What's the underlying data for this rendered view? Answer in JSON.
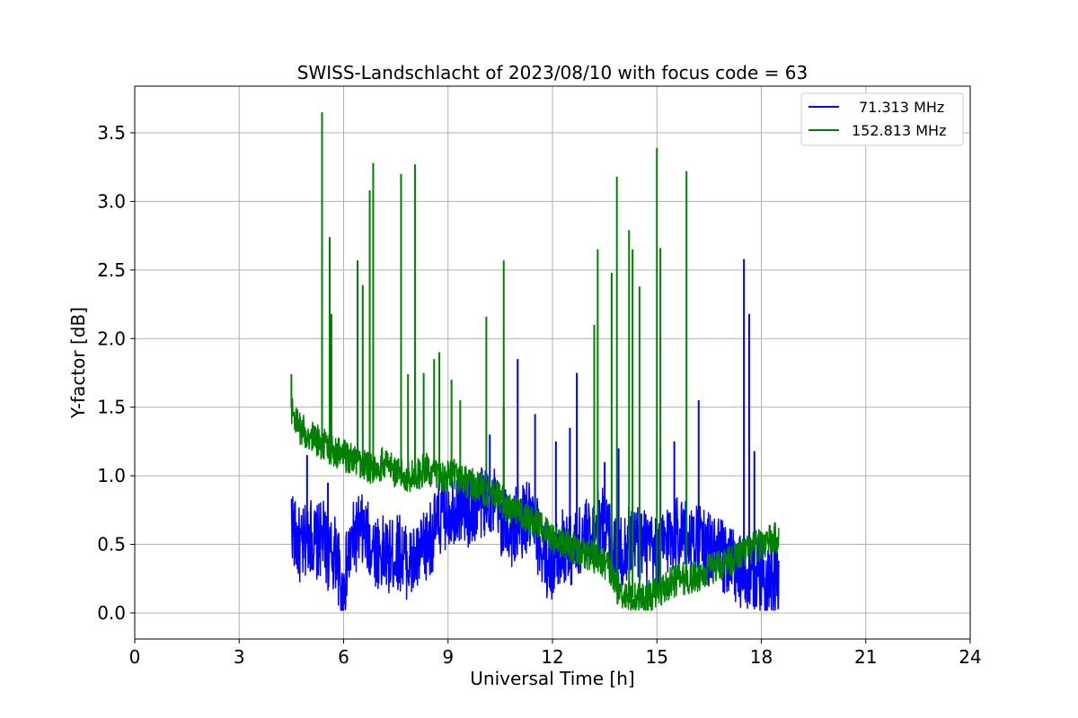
{
  "chart_data": {
    "type": "line",
    "title": "SWISS-Landschlacht of 2023/08/10 with focus code = 63",
    "xlabel": "Universal Time [h]",
    "ylabel": "Y-factor [dB]",
    "xlim": [
      0,
      24
    ],
    "ylim": [
      -0.19,
      3.84
    ],
    "xticks": [
      0,
      3,
      6,
      9,
      12,
      15,
      18,
      21,
      24
    ],
    "yticks": [
      0.0,
      0.5,
      1.0,
      1.5,
      2.0,
      2.5,
      3.0,
      3.5
    ],
    "grid": true,
    "legend_position": "top-right",
    "series": [
      {
        "name": "71.313 MHz",
        "color": "#0000ff",
        "x": [
          4.5,
          4.6,
          4.8,
          5.0,
          5.2,
          5.4,
          5.6,
          5.8,
          5.95,
          6.1,
          6.3,
          6.5,
          6.8,
          7.0,
          7.3,
          7.6,
          7.9,
          8.2,
          8.5,
          8.8,
          9.0,
          9.3,
          9.6,
          9.9,
          10.2,
          10.5,
          10.8,
          11.0,
          11.3,
          11.5,
          11.8,
          12.0,
          12.3,
          12.6,
          12.9,
          13.2,
          13.5,
          13.8,
          14.0,
          14.3,
          14.6,
          15.0,
          15.3,
          15.6,
          16.0,
          16.3,
          16.6,
          17.0,
          17.3,
          17.6,
          17.9,
          18.2,
          18.5
        ],
        "y": [
          0.7,
          0.55,
          0.45,
          0.6,
          0.5,
          0.55,
          0.4,
          0.45,
          0.1,
          0.35,
          0.55,
          0.6,
          0.5,
          0.45,
          0.4,
          0.45,
          0.35,
          0.4,
          0.55,
          0.7,
          0.75,
          0.8,
          0.75,
          0.8,
          0.85,
          0.7,
          0.6,
          0.65,
          0.7,
          0.6,
          0.4,
          0.35,
          0.5,
          0.45,
          0.55,
          0.6,
          0.65,
          0.5,
          0.45,
          0.55,
          0.5,
          0.4,
          0.55,
          0.6,
          0.55,
          0.5,
          0.45,
          0.4,
          0.3,
          0.25,
          0.3,
          0.25,
          0.25
        ],
        "spikes": [
          [
            4.95,
            1.15
          ],
          [
            5.55,
            0.95
          ],
          [
            9.3,
            1.05
          ],
          [
            10.2,
            1.3
          ],
          [
            10.6,
            1.5
          ],
          [
            11.0,
            1.85
          ],
          [
            11.5,
            1.45
          ],
          [
            12.1,
            1.25
          ],
          [
            12.5,
            1.35
          ],
          [
            12.7,
            1.75
          ],
          [
            13.5,
            1.1
          ],
          [
            13.9,
            1.2
          ],
          [
            15.1,
            1.2
          ],
          [
            15.5,
            1.25
          ],
          [
            16.2,
            1.55
          ],
          [
            17.5,
            2.58
          ],
          [
            17.65,
            2.18
          ],
          [
            17.8,
            1.18
          ]
        ]
      },
      {
        "name": "152.813 MHz",
        "color": "#008000",
        "x": [
          4.5,
          4.7,
          5.0,
          5.3,
          5.6,
          6.0,
          6.4,
          6.8,
          7.2,
          7.6,
          8.0,
          8.4,
          8.8,
          9.2,
          9.6,
          10.0,
          10.4,
          10.8,
          11.2,
          11.6,
          12.0,
          12.4,
          12.8,
          13.2,
          13.6,
          13.8,
          14.0,
          14.4,
          14.8,
          15.2,
          15.6,
          16.0,
          16.4,
          16.8,
          17.2,
          17.6,
          18.0,
          18.5
        ],
        "y": [
          1.5,
          1.35,
          1.3,
          1.25,
          1.2,
          1.15,
          1.1,
          1.05,
          1.1,
          1.0,
          1.0,
          1.05,
          1.0,
          1.0,
          0.95,
          0.9,
          0.85,
          0.75,
          0.7,
          0.65,
          0.55,
          0.5,
          0.45,
          0.4,
          0.35,
          0.2,
          0.15,
          0.1,
          0.12,
          0.18,
          0.25,
          0.25,
          0.3,
          0.35,
          0.4,
          0.45,
          0.5,
          0.55
        ],
        "spikes": [
          [
            4.5,
            1.74
          ],
          [
            5.38,
            3.65
          ],
          [
            5.6,
            2.74
          ],
          [
            5.65,
            2.18
          ],
          [
            6.4,
            2.57
          ],
          [
            6.55,
            2.39
          ],
          [
            6.75,
            3.08
          ],
          [
            6.85,
            3.28
          ],
          [
            7.65,
            3.2
          ],
          [
            7.85,
            1.74
          ],
          [
            8.05,
            3.27
          ],
          [
            8.3,
            1.75
          ],
          [
            8.6,
            1.85
          ],
          [
            8.75,
            1.9
          ],
          [
            9.1,
            1.7
          ],
          [
            9.35,
            1.55
          ],
          [
            10.1,
            2.16
          ],
          [
            10.6,
            2.57
          ],
          [
            13.2,
            2.1
          ],
          [
            13.3,
            2.65
          ],
          [
            13.7,
            2.48
          ],
          [
            13.85,
            3.18
          ],
          [
            14.2,
            2.79
          ],
          [
            14.3,
            2.65
          ],
          [
            14.5,
            2.38
          ],
          [
            15.0,
            3.39
          ],
          [
            15.1,
            2.66
          ],
          [
            15.85,
            3.22
          ]
        ]
      }
    ]
  }
}
